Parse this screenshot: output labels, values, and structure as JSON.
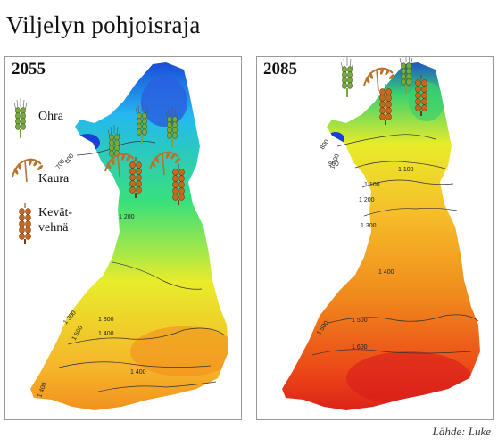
{
  "title": "Viljelyn pohjoisraja",
  "source": "Lähde: Luke",
  "legend": {
    "ohra": "Ohra",
    "kaura": "Kaura",
    "kevatvehna_line1": "Kevät-",
    "kevatvehna_line2": "vehnä"
  },
  "panels": [
    {
      "year": "2055",
      "isolines": [
        "700",
        "800",
        "1 200",
        "1 300",
        "1 300",
        "1 400",
        "1 500",
        "1 400",
        "1 400"
      ]
    },
    {
      "year": "2085",
      "isolines": [
        "800",
        "900",
        "1 000",
        "1 100",
        "1 100",
        "1 200",
        "1 300",
        "1 400",
        "1 500",
        "1 500",
        "1 600"
      ]
    }
  ],
  "colors": {
    "cold": "#1a3fd6",
    "cool": "#24b8f0",
    "mild": "#38e07a",
    "warm": "#e8ec2a",
    "hot": "#f08a1c",
    "hottest": "#e0201a",
    "barley": "#7aa83c",
    "oats": "#b8722a",
    "wheat": "#c8681e"
  },
  "icons": [
    "barley-icon",
    "oats-icon",
    "spring-wheat-icon"
  ]
}
